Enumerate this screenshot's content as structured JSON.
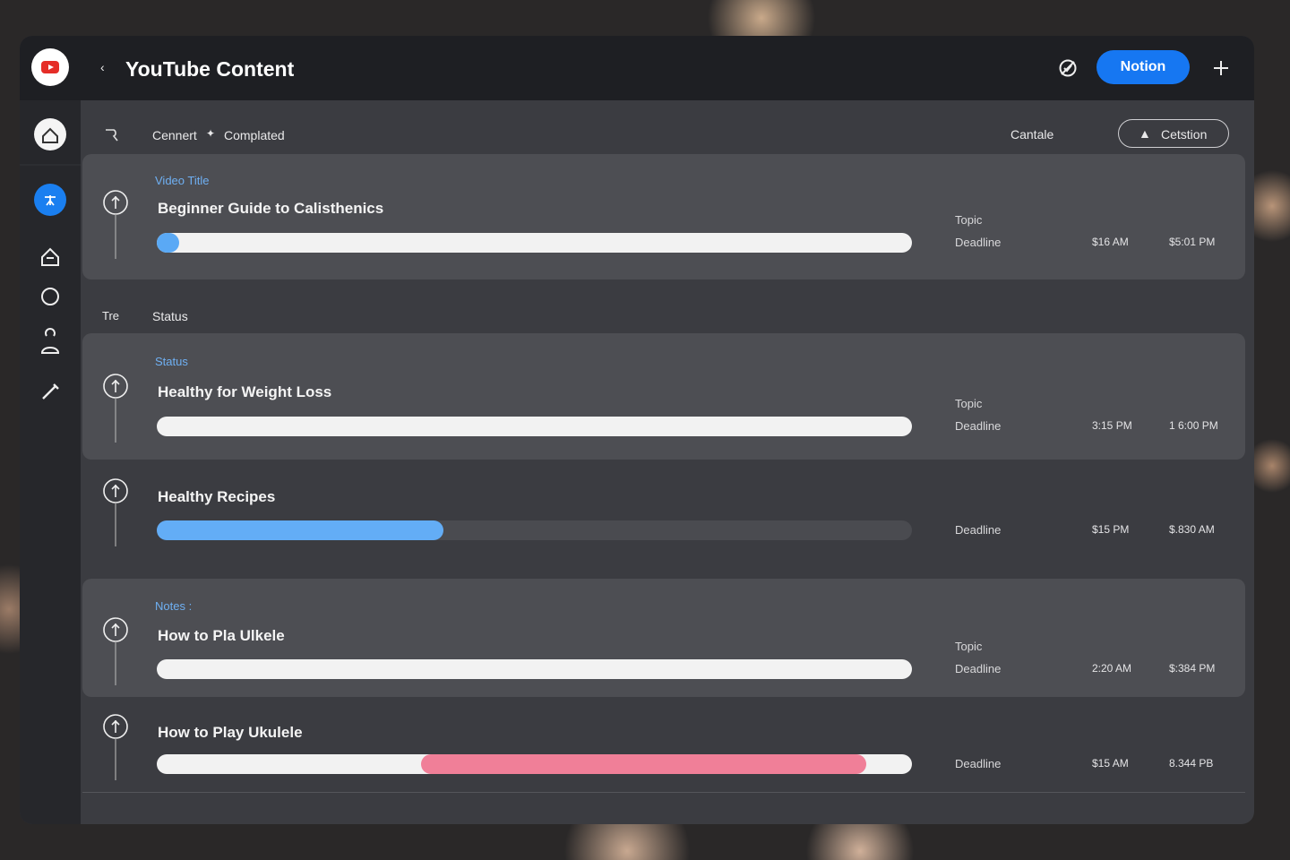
{
  "header": {
    "title": "YouTube Content",
    "button": "Notion"
  },
  "toolbar": {
    "filters": [
      "Cennert",
      "Complated"
    ],
    "sort": "Cantale",
    "action": "Cetstion"
  },
  "section": {
    "label": "Tre",
    "title": "Status"
  },
  "rows": [
    {
      "label": "Video Title",
      "title": "Beginner Guide to Calisthenics",
      "topic": "Topic",
      "deadline": "Deadline",
      "time1": "$16 AM",
      "time2": "$5:01 PM",
      "card": true,
      "progress": {
        "track": "#f2f2f2",
        "start": 0,
        "end": 3,
        "color": "#5aa9f5"
      }
    },
    {
      "label": "Status",
      "title": "Healthy for Weight Loss",
      "topic": "Topic",
      "deadline": "Deadline",
      "time1": "3:15 PM",
      "time2": "1 6:00 PM",
      "card": true,
      "progress": {
        "track": "#f2f2f2",
        "start": 0,
        "end": 0,
        "color": "#5aa9f5"
      }
    },
    {
      "title": "Healthy Recipes",
      "deadline": "Deadline",
      "time1": "$15 PM",
      "time2": "$.830 AM",
      "card": false,
      "progress": {
        "track": "#4a4b50",
        "start": 0,
        "end": 38,
        "color": "#63adf6"
      }
    },
    {
      "label": "Notes :",
      "title": "How to Pla Ulkele",
      "topic": "Topic",
      "deadline": "Deadline",
      "time1": "2:20 AM",
      "time2": "$:384 PM",
      "card": true,
      "progress": {
        "track": "#f2f2f2",
        "start": 0,
        "end": 0,
        "color": "#5aa9f5"
      }
    },
    {
      "title": "How to Play Ukulele",
      "deadline": "Deadline",
      "time1": "$15 AM",
      "time2": "8.344 PB",
      "card": false,
      "progress": {
        "track": "#f2f2f2",
        "start": 35,
        "end": 94,
        "color": "#f07f98"
      }
    }
  ]
}
